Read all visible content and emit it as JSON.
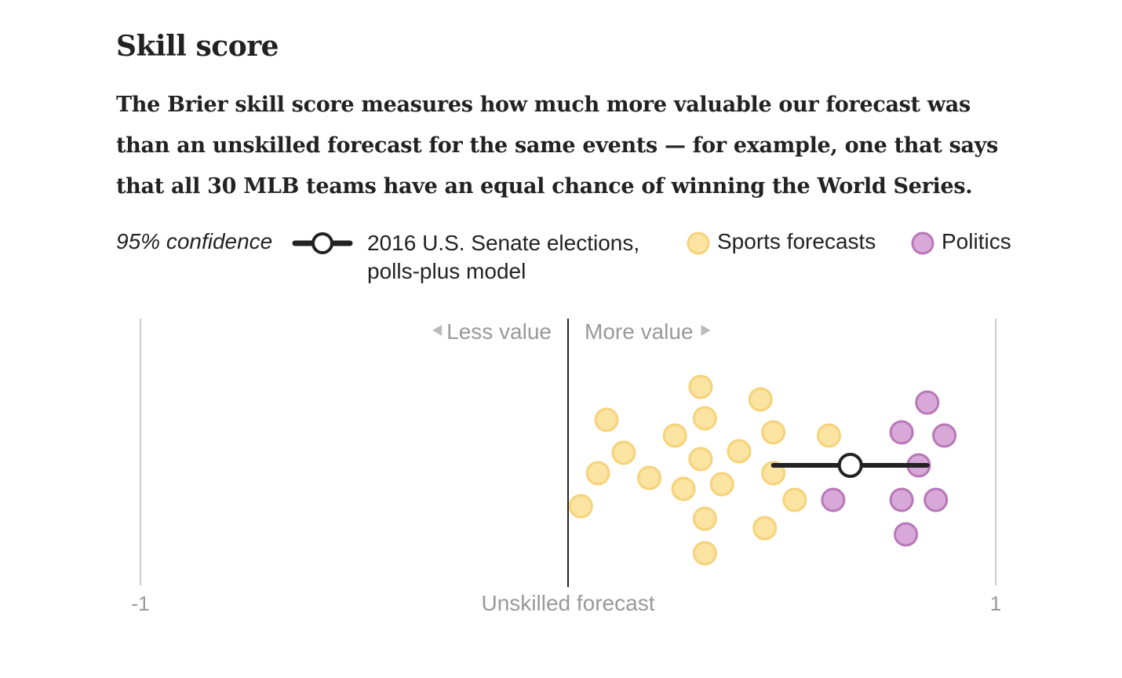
{
  "title": "Skill score",
  "description": "The Brier skill score measures how much more valuable our forecast was than an unskilled forecast for the same events — for example, one that says that all 30 MLB teams have an equal chance of winning the World Series.",
  "legend": {
    "confidence_label": "95% confidence",
    "senate_label_line1": "2016 U.S. Senate elections,",
    "senate_label_line2": "polls-plus model",
    "sports_label": "Sports forecasts",
    "politics_label": "Politics"
  },
  "colors": {
    "sports_fill": "#fbe3a1",
    "sports_stroke": "#f6d37a",
    "politics_fill": "#d8a9d8",
    "politics_stroke": "#b877b8",
    "ci_line": "#222222",
    "axis_edge": "#cccccc",
    "zero_line": "#222222",
    "muted_text": "#999999"
  },
  "chart_data": {
    "type": "scatter",
    "x_range": [
      -1,
      1
    ],
    "tick_labels": {
      "min": "-1",
      "zero": "Unskilled forecast",
      "max": "1"
    },
    "annotations": {
      "less_value": "Less value",
      "more_value": "More value"
    },
    "series": [
      {
        "name": "Sports forecasts",
        "points": [
          {
            "x": 0.03,
            "y": -1.3
          },
          {
            "x": 0.07,
            "y": -0.25
          },
          {
            "x": 0.09,
            "y": 1.45
          },
          {
            "x": 0.13,
            "y": 0.4
          },
          {
            "x": 0.19,
            "y": -0.4
          },
          {
            "x": 0.25,
            "y": 0.95
          },
          {
            "x": 0.27,
            "y": -0.75
          },
          {
            "x": 0.31,
            "y": 2.5
          },
          {
            "x": 0.31,
            "y": 0.2
          },
          {
            "x": 0.32,
            "y": 1.5
          },
          {
            "x": 0.32,
            "y": -1.7
          },
          {
            "x": 0.32,
            "y": -2.8
          },
          {
            "x": 0.36,
            "y": -0.6
          },
          {
            "x": 0.4,
            "y": 0.45
          },
          {
            "x": 0.45,
            "y": 2.1
          },
          {
            "x": 0.46,
            "y": -2.0
          },
          {
            "x": 0.48,
            "y": 1.05
          },
          {
            "x": 0.48,
            "y": -0.25
          },
          {
            "x": 0.53,
            "y": -1.1
          },
          {
            "x": 0.61,
            "y": 0.95
          }
        ]
      },
      {
        "name": "Politics",
        "points": [
          {
            "x": 0.62,
            "y": -1.1
          },
          {
            "x": 0.78,
            "y": 1.05
          },
          {
            "x": 0.78,
            "y": -1.1
          },
          {
            "x": 0.79,
            "y": -2.2
          },
          {
            "x": 0.82,
            "y": 0.0
          },
          {
            "x": 0.84,
            "y": 2.0
          },
          {
            "x": 0.86,
            "y": -1.1
          },
          {
            "x": 0.88,
            "y": 0.95
          }
        ]
      }
    ],
    "confidence_interval": {
      "name": "2016 U.S. Senate elections, polls-plus model",
      "estimate": 0.66,
      "low": 0.48,
      "high": 0.84
    }
  }
}
